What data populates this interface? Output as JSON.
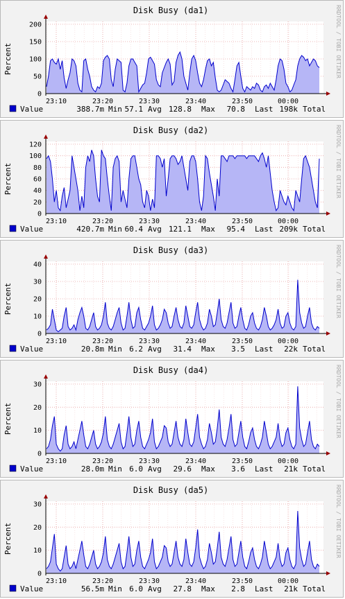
{
  "watermark": "RRDTOOL / TOBI OETIKER",
  "ylabel": "Percent",
  "x_ticks": [
    "23:10",
    "23:20",
    "23:30",
    "23:40",
    "23:50",
    "00:00"
  ],
  "colors": {
    "area": "#b6b6f6",
    "line": "#0000cc",
    "grid": "#e8a0a0",
    "axis": "#000000",
    "arrow": "#990000"
  },
  "chart_data": [
    {
      "type": "area",
      "title": "Disk Busy (da1)",
      "ylabel": "Percent",
      "ylim": [
        0,
        200
      ],
      "y_ticks": [
        0,
        50,
        100,
        150,
        200
      ],
      "x_ticks": [
        "23:10",
        "23:20",
        "23:30",
        "23:40",
        "23:50",
        "00:00"
      ],
      "series": [
        {
          "name": "Value",
          "values": [
            20,
            50,
            95,
            100,
            90,
            85,
            100,
            70,
            95,
            45,
            15,
            40,
            60,
            100,
            95,
            80,
            30,
            10,
            5,
            95,
            100,
            70,
            50,
            20,
            10,
            5,
            20,
            15,
            30,
            95,
            105,
            110,
            100,
            40,
            20,
            70,
            100,
            95,
            90,
            10,
            5,
            30,
            80,
            100,
            100,
            90,
            80,
            5,
            15,
            25,
            30,
            60,
            100,
            105,
            95,
            85,
            40,
            25,
            20,
            60,
            75,
            90,
            100,
            85,
            25,
            35,
            90,
            110,
            120,
            100,
            50,
            30,
            10,
            60,
            100,
            110,
            95,
            60,
            30,
            20,
            40,
            70,
            95,
            100,
            80,
            90,
            45,
            10,
            5,
            10,
            25,
            40,
            35,
            30,
            15,
            5,
            40,
            80,
            90,
            50,
            15,
            5,
            20,
            15,
            10,
            20,
            15,
            30,
            25,
            10,
            5,
            20,
            25,
            15,
            30,
            20,
            10,
            40,
            80,
            100,
            95,
            70,
            30,
            20,
            5,
            10,
            25,
            40,
            80,
            100,
            110,
            105,
            95,
            100,
            80,
            90,
            100,
            95,
            80,
            75
          ],
          "min": "388.7m",
          "avg": "57.1",
          "max": "128.8",
          "last": "70.8",
          "total": "198k"
        }
      ]
    },
    {
      "type": "area",
      "title": "Disk Busy (da2)",
      "ylabel": "Percent",
      "ylim": [
        0,
        120
      ],
      "y_ticks": [
        0,
        20,
        40,
        60,
        80,
        100,
        120
      ],
      "x_ticks": [
        "23:10",
        "23:20",
        "23:30",
        "23:40",
        "23:50",
        "00:00"
      ],
      "series": [
        {
          "name": "Value",
          "values": [
            95,
            100,
            90,
            60,
            20,
            40,
            10,
            5,
            30,
            45,
            10,
            25,
            40,
            100,
            80,
            60,
            40,
            5,
            30,
            10,
            80,
            100,
            90,
            110,
            100,
            60,
            30,
            20,
            110,
            100,
            95,
            60,
            30,
            5,
            80,
            95,
            100,
            90,
            20,
            40,
            25,
            10,
            60,
            95,
            100,
            100,
            80,
            60,
            50,
            20,
            10,
            40,
            30,
            5,
            25,
            10,
            100,
            100,
            95,
            80,
            95,
            30,
            60,
            95,
            100,
            100,
            95,
            85,
            90,
            100,
            80,
            60,
            40,
            90,
            100,
            100,
            90,
            60,
            20,
            5,
            30,
            100,
            95,
            70,
            50,
            30,
            5,
            60,
            30,
            100,
            100,
            95,
            90,
            100,
            100,
            100,
            95,
            100,
            100,
            100,
            100,
            100,
            95,
            100,
            100,
            100,
            100,
            95,
            90,
            100,
            105,
            95,
            80,
            100,
            70,
            40,
            20,
            5,
            10,
            40,
            30,
            20,
            15,
            30,
            20,
            10,
            5,
            40,
            30,
            20,
            60,
            95,
            100,
            90,
            80,
            60,
            40,
            20,
            10,
            95
          ],
          "min": "420.7m",
          "avg": "60.4",
          "max": "121.1",
          "last": "95.4",
          "total": "209k"
        }
      ]
    },
    {
      "type": "area",
      "title": "Disk Busy (da3)",
      "ylabel": "Percent",
      "ylim": [
        0,
        40
      ],
      "y_ticks": [
        0,
        10,
        20,
        30,
        40
      ],
      "x_ticks": [
        "23:10",
        "23:20",
        "23:30",
        "23:40",
        "23:50",
        "00:00"
      ],
      "series": [
        {
          "name": "Value",
          "values": [
            2,
            3,
            5,
            14,
            8,
            2,
            1,
            2,
            3,
            10,
            15,
            4,
            2,
            3,
            5,
            2,
            8,
            12,
            15,
            10,
            3,
            2,
            4,
            8,
            12,
            4,
            2,
            3,
            5,
            10,
            18,
            6,
            3,
            2,
            4,
            8,
            12,
            15,
            6,
            2,
            3,
            10,
            18,
            8,
            3,
            4,
            12,
            15,
            8,
            3,
            2,
            4,
            6,
            10,
            16,
            5,
            2,
            3,
            5,
            8,
            14,
            12,
            6,
            3,
            4,
            10,
            15,
            8,
            4,
            3,
            6,
            16,
            10,
            4,
            3,
            5,
            12,
            18,
            8,
            4,
            2,
            3,
            6,
            14,
            10,
            4,
            5,
            12,
            20,
            8,
            4,
            3,
            6,
            12,
            18,
            6,
            3,
            4,
            10,
            15,
            8,
            3,
            2,
            5,
            10,
            12,
            6,
            3,
            2,
            4,
            8,
            15,
            10,
            4,
            2,
            3,
            5,
            8,
            14,
            6,
            3,
            4,
            10,
            12,
            6,
            3,
            2,
            4,
            31,
            12,
            6,
            3,
            4,
            10,
            15,
            6,
            3,
            2,
            4,
            3
          ],
          "min": "20.8m",
          "avg": "6.2",
          "max": "31.4",
          "last": "3.5",
          "total": "22k"
        }
      ]
    },
    {
      "type": "area",
      "title": "Disk Busy (da4)",
      "ylabel": "Percent",
      "ylim": [
        0,
        30
      ],
      "y_ticks": [
        0,
        10,
        20,
        30
      ],
      "x_ticks": [
        "23:10",
        "23:20",
        "23:30",
        "23:40",
        "23:50",
        "00:00"
      ],
      "series": [
        {
          "name": "Value",
          "values": [
            2,
            3,
            6,
            12,
            16,
            4,
            2,
            1,
            2,
            8,
            12,
            4,
            2,
            3,
            5,
            2,
            6,
            10,
            14,
            8,
            3,
            2,
            4,
            7,
            10,
            4,
            2,
            3,
            5,
            9,
            16,
            6,
            3,
            2,
            4,
            7,
            10,
            13,
            5,
            2,
            3,
            9,
            16,
            7,
            3,
            4,
            10,
            14,
            7,
            3,
            2,
            4,
            6,
            9,
            15,
            5,
            2,
            3,
            5,
            7,
            12,
            11,
            5,
            3,
            4,
            9,
            14,
            7,
            4,
            3,
            6,
            15,
            9,
            4,
            3,
            5,
            11,
            17,
            7,
            4,
            2,
            3,
            6,
            13,
            9,
            4,
            5,
            11,
            19,
            7,
            4,
            3,
            6,
            11,
            17,
            6,
            3,
            4,
            9,
            14,
            7,
            3,
            2,
            5,
            9,
            11,
            6,
            3,
            2,
            4,
            7,
            14,
            9,
            4,
            2,
            3,
            5,
            7,
            13,
            6,
            3,
            4,
            9,
            11,
            6,
            3,
            2,
            4,
            29,
            11,
            6,
            3,
            4,
            9,
            14,
            6,
            3,
            2,
            4,
            3
          ],
          "min": "28.0m",
          "avg": "6.0",
          "max": "29.6",
          "last": "3.6",
          "total": "21k"
        }
      ]
    },
    {
      "type": "area",
      "title": "Disk Busy (da5)",
      "ylabel": "Percent",
      "ylim": [
        0,
        30
      ],
      "y_ticks": [
        0,
        10,
        20,
        30
      ],
      "x_ticks": [
        "23:10",
        "23:20",
        "23:30",
        "23:40",
        "23:50",
        "00:00"
      ],
      "series": [
        {
          "name": "Value",
          "values": [
            2,
            3,
            5,
            11,
            17,
            4,
            2,
            1,
            2,
            7,
            12,
            4,
            2,
            3,
            5,
            2,
            6,
            10,
            14,
            8,
            3,
            2,
            4,
            7,
            10,
            4,
            2,
            3,
            5,
            9,
            16,
            6,
            3,
            2,
            4,
            7,
            10,
            13,
            5,
            2,
            3,
            9,
            16,
            7,
            3,
            4,
            10,
            14,
            7,
            3,
            2,
            4,
            6,
            9,
            15,
            5,
            2,
            3,
            5,
            7,
            12,
            11,
            5,
            3,
            4,
            9,
            14,
            7,
            4,
            3,
            6,
            15,
            9,
            4,
            3,
            5,
            11,
            19,
            7,
            4,
            2,
            3,
            6,
            13,
            9,
            4,
            5,
            11,
            18,
            7,
            4,
            3,
            6,
            11,
            16,
            6,
            3,
            4,
            9,
            14,
            7,
            3,
            2,
            5,
            9,
            11,
            6,
            3,
            2,
            4,
            7,
            14,
            9,
            4,
            2,
            3,
            5,
            7,
            13,
            6,
            3,
            4,
            9,
            11,
            6,
            3,
            2,
            4,
            27,
            11,
            6,
            3,
            4,
            9,
            14,
            6,
            3,
            2,
            4,
            3
          ],
          "min": "56.5m",
          "avg": "6.0",
          "max": "27.8",
          "last": "2.8",
          "total": "21k"
        }
      ]
    }
  ]
}
